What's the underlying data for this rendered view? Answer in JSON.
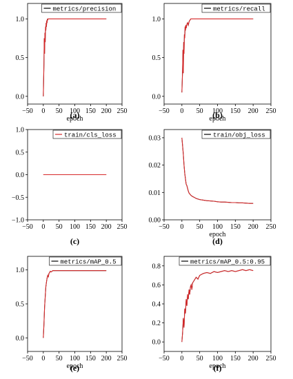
{
  "chart_data": [
    {
      "type": "line",
      "caption": "(a)",
      "xlabel": "epoch",
      "ylabel": "",
      "xlim": [
        -50,
        250
      ],
      "ylim": [
        -0.1,
        1.2
      ],
      "xticks": [
        -50,
        0,
        50,
        100,
        150,
        200,
        250
      ],
      "yticks": [
        0.0,
        0.5,
        1.0
      ],
      "ytick_labels": [
        "0.0",
        "0.5",
        "1.0"
      ],
      "legend": "top-right",
      "series": [
        {
          "name": "metrics/precision",
          "color": "#d62728",
          "noisy_color": "#000000",
          "x": [
            0,
            2,
            3,
            4,
            5,
            6,
            7,
            8,
            9,
            10,
            11,
            12,
            13,
            14,
            15,
            200
          ],
          "y": [
            0.0,
            0.42,
            0.75,
            0.55,
            0.82,
            0.7,
            0.9,
            0.85,
            0.95,
            0.9,
            0.98,
            0.95,
            1.0,
            0.99,
            1.0,
            1.0
          ]
        }
      ]
    },
    {
      "type": "line",
      "caption": "(b)",
      "xlabel": "epoch",
      "ylabel": "",
      "xlim": [
        -50,
        250
      ],
      "ylim": [
        -0.1,
        1.2
      ],
      "xticks": [
        -50,
        0,
        50,
        100,
        150,
        200,
        250
      ],
      "yticks": [
        0.0,
        0.5,
        1.0
      ],
      "ytick_labels": [
        "0.0",
        "0.5",
        "1.0"
      ],
      "legend": "top-right",
      "series": [
        {
          "name": "metrics/recall",
          "color": "#d62728",
          "noisy_color": "#000000",
          "x": [
            0,
            2,
            3,
            4,
            5,
            6,
            7,
            8,
            9,
            10,
            11,
            12,
            14,
            16,
            18,
            20,
            22,
            25,
            200
          ],
          "y": [
            0.05,
            0.35,
            0.6,
            0.3,
            0.7,
            0.55,
            0.8,
            0.75,
            0.9,
            0.85,
            0.92,
            0.88,
            0.93,
            0.95,
            0.92,
            0.96,
            0.98,
            1.0,
            1.0
          ]
        }
      ]
    },
    {
      "type": "line",
      "caption": "(c)",
      "xlabel": "",
      "ylabel": "",
      "xlim": [
        -50,
        250
      ],
      "ylim": [
        -1.0,
        1.0
      ],
      "xticks": [
        -50,
        0,
        50,
        100,
        150,
        200,
        250
      ],
      "yticks": [
        -1.0,
        -0.5,
        0.0,
        0.5,
        1.0
      ],
      "ytick_labels": [
        "-1.0",
        "-0.5",
        "0.0",
        "0.5",
        "1.0"
      ],
      "legend": "top-right",
      "series": [
        {
          "name": "train/cls_loss",
          "color": "#d62728",
          "noisy_color": "#d62728",
          "x": [
            0,
            200
          ],
          "y": [
            0,
            0
          ]
        }
      ]
    },
    {
      "type": "line",
      "caption": "(d)",
      "xlabel": "epoch",
      "ylabel": "",
      "xlim": [
        -50,
        250
      ],
      "ylim": [
        0.0,
        0.033
      ],
      "xticks": [
        -50,
        0,
        50,
        100,
        150,
        200,
        250
      ],
      "yticks": [
        0.0,
        0.01,
        0.02,
        0.03
      ],
      "ytick_labels": [
        "0.00",
        "0.01",
        "0.02",
        "0.03"
      ],
      "legend": "top-right",
      "series": [
        {
          "name": "train/obj_loss",
          "color": "#d62728",
          "noisy_color": "#000000",
          "x": [
            0,
            2,
            4,
            6,
            8,
            10,
            12,
            14,
            16,
            18,
            20,
            25,
            30,
            35,
            40,
            50,
            60,
            70,
            80,
            90,
            100,
            110,
            120,
            130,
            140,
            150,
            160,
            170,
            180,
            190,
            200
          ],
          "y": [
            0.03,
            0.027,
            0.024,
            0.02,
            0.017,
            0.015,
            0.013,
            0.0125,
            0.0115,
            0.0105,
            0.0098,
            0.009,
            0.0085,
            0.0082,
            0.0078,
            0.0074,
            0.0072,
            0.007,
            0.0069,
            0.0068,
            0.0066,
            0.0065,
            0.0065,
            0.0064,
            0.0063,
            0.0063,
            0.0062,
            0.0062,
            0.0061,
            0.006,
            0.006
          ]
        }
      ]
    },
    {
      "type": "line",
      "caption": "(e)",
      "xlabel": "epoch",
      "ylabel": "",
      "xlim": [
        -50,
        250
      ],
      "ylim": [
        -0.2,
        1.2
      ],
      "xticks": [
        -50,
        0,
        50,
        100,
        150,
        200,
        250
      ],
      "yticks": [
        0.0,
        0.5,
        1.0
      ],
      "ytick_labels": [
        "0.0",
        "0.5",
        "1.0"
      ],
      "legend": "top-right",
      "series": [
        {
          "name": "metrics/mAP_0.5",
          "color": "#d62728",
          "noisy_color": "#000000",
          "x": [
            0,
            2,
            4,
            6,
            8,
            10,
            12,
            14,
            16,
            18,
            20,
            22,
            25,
            30,
            200
          ],
          "y": [
            0.0,
            0.2,
            0.45,
            0.6,
            0.75,
            0.82,
            0.88,
            0.92,
            0.9,
            0.95,
            0.96,
            0.98,
            0.97,
            0.99,
            0.99
          ]
        }
      ]
    },
    {
      "type": "line",
      "caption": "(f)",
      "xlabel": "epoch",
      "ylabel": "",
      "xlim": [
        -50,
        250
      ],
      "ylim": [
        -0.1,
        0.9
      ],
      "xticks": [
        -50,
        0,
        50,
        100,
        150,
        200,
        250
      ],
      "yticks": [
        0.0,
        0.2,
        0.4,
        0.6,
        0.8
      ],
      "ytick_labels": [
        "0.0",
        "0.2",
        "0.4",
        "0.6",
        "0.8"
      ],
      "legend": "top-right",
      "series": [
        {
          "name": "metrics/mAP_0.5:0.95",
          "color": "#d62728",
          "noisy_color": "#000000",
          "x": [
            0,
            2,
            4,
            6,
            8,
            10,
            12,
            14,
            16,
            18,
            20,
            22,
            24,
            26,
            28,
            30,
            35,
            40,
            45,
            50,
            60,
            70,
            80,
            90,
            100,
            110,
            120,
            130,
            140,
            150,
            160,
            170,
            180,
            190,
            200
          ],
          "y": [
            0.0,
            0.1,
            0.25,
            0.15,
            0.35,
            0.3,
            0.45,
            0.38,
            0.5,
            0.45,
            0.55,
            0.5,
            0.58,
            0.6,
            0.55,
            0.62,
            0.65,
            0.68,
            0.66,
            0.7,
            0.72,
            0.73,
            0.72,
            0.74,
            0.73,
            0.74,
            0.75,
            0.74,
            0.75,
            0.74,
            0.75,
            0.76,
            0.75,
            0.76,
            0.75
          ]
        }
      ]
    }
  ]
}
